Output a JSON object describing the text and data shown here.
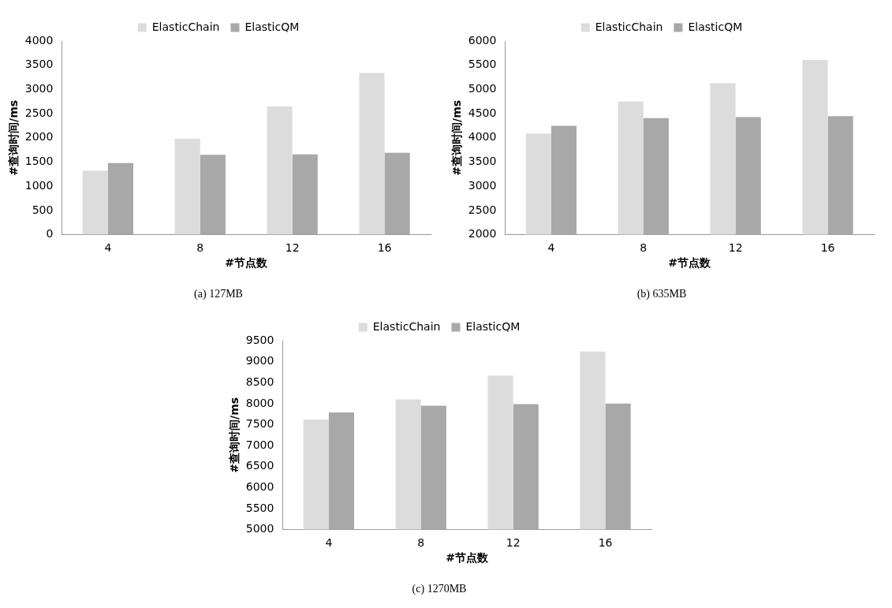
{
  "chart_data": [
    {
      "type": "bar",
      "title": "(a) 127MB",
      "xlabel": "#节点数",
      "ylabel": "#查询时间/ms",
      "categories": [
        "4",
        "8",
        "12",
        "16"
      ],
      "ylim": [
        0,
        4000
      ],
      "yticks": [
        0,
        500,
        1000,
        1500,
        2000,
        2500,
        3000,
        3500,
        4000
      ],
      "legend": "top",
      "series": [
        {
          "name": "ElasticChain",
          "color": "#dcdcdc",
          "values": [
            1320,
            1980,
            2650,
            3340
          ]
        },
        {
          "name": "ElasticQM",
          "color": "#a8a8a8",
          "values": [
            1480,
            1650,
            1660,
            1690
          ]
        }
      ]
    },
    {
      "type": "bar",
      "title": "(b) 635MB",
      "xlabel": "#节点数",
      "ylabel": "#查询时间/ms",
      "categories": [
        "4",
        "8",
        "12",
        "16"
      ],
      "ylim": [
        2000,
        6000
      ],
      "yticks": [
        2000,
        2500,
        3000,
        3500,
        4000,
        4500,
        5000,
        5500,
        6000
      ],
      "legend": "top",
      "series": [
        {
          "name": "ElasticChain",
          "color": "#dcdcdc",
          "values": [
            4090,
            4750,
            5130,
            5610
          ]
        },
        {
          "name": "ElasticQM",
          "color": "#a8a8a8",
          "values": [
            4250,
            4410,
            4430,
            4450
          ]
        }
      ]
    },
    {
      "type": "bar",
      "title": "(c) 1270MB",
      "xlabel": "#节点数",
      "ylabel": "#查询时间/ms",
      "categories": [
        "4",
        "8",
        "12",
        "16"
      ],
      "ylim": [
        5000,
        9500
      ],
      "yticks": [
        5000,
        5500,
        6000,
        6500,
        7000,
        7500,
        8000,
        8500,
        9000,
        9500
      ],
      "legend": "top",
      "series": [
        {
          "name": "ElasticChain",
          "color": "#dcdcdc",
          "values": [
            7620,
            8100,
            8670,
            9240
          ]
        },
        {
          "name": "ElasticQM",
          "color": "#a8a8a8",
          "values": [
            7790,
            7950,
            7990,
            8000
          ]
        }
      ]
    }
  ]
}
